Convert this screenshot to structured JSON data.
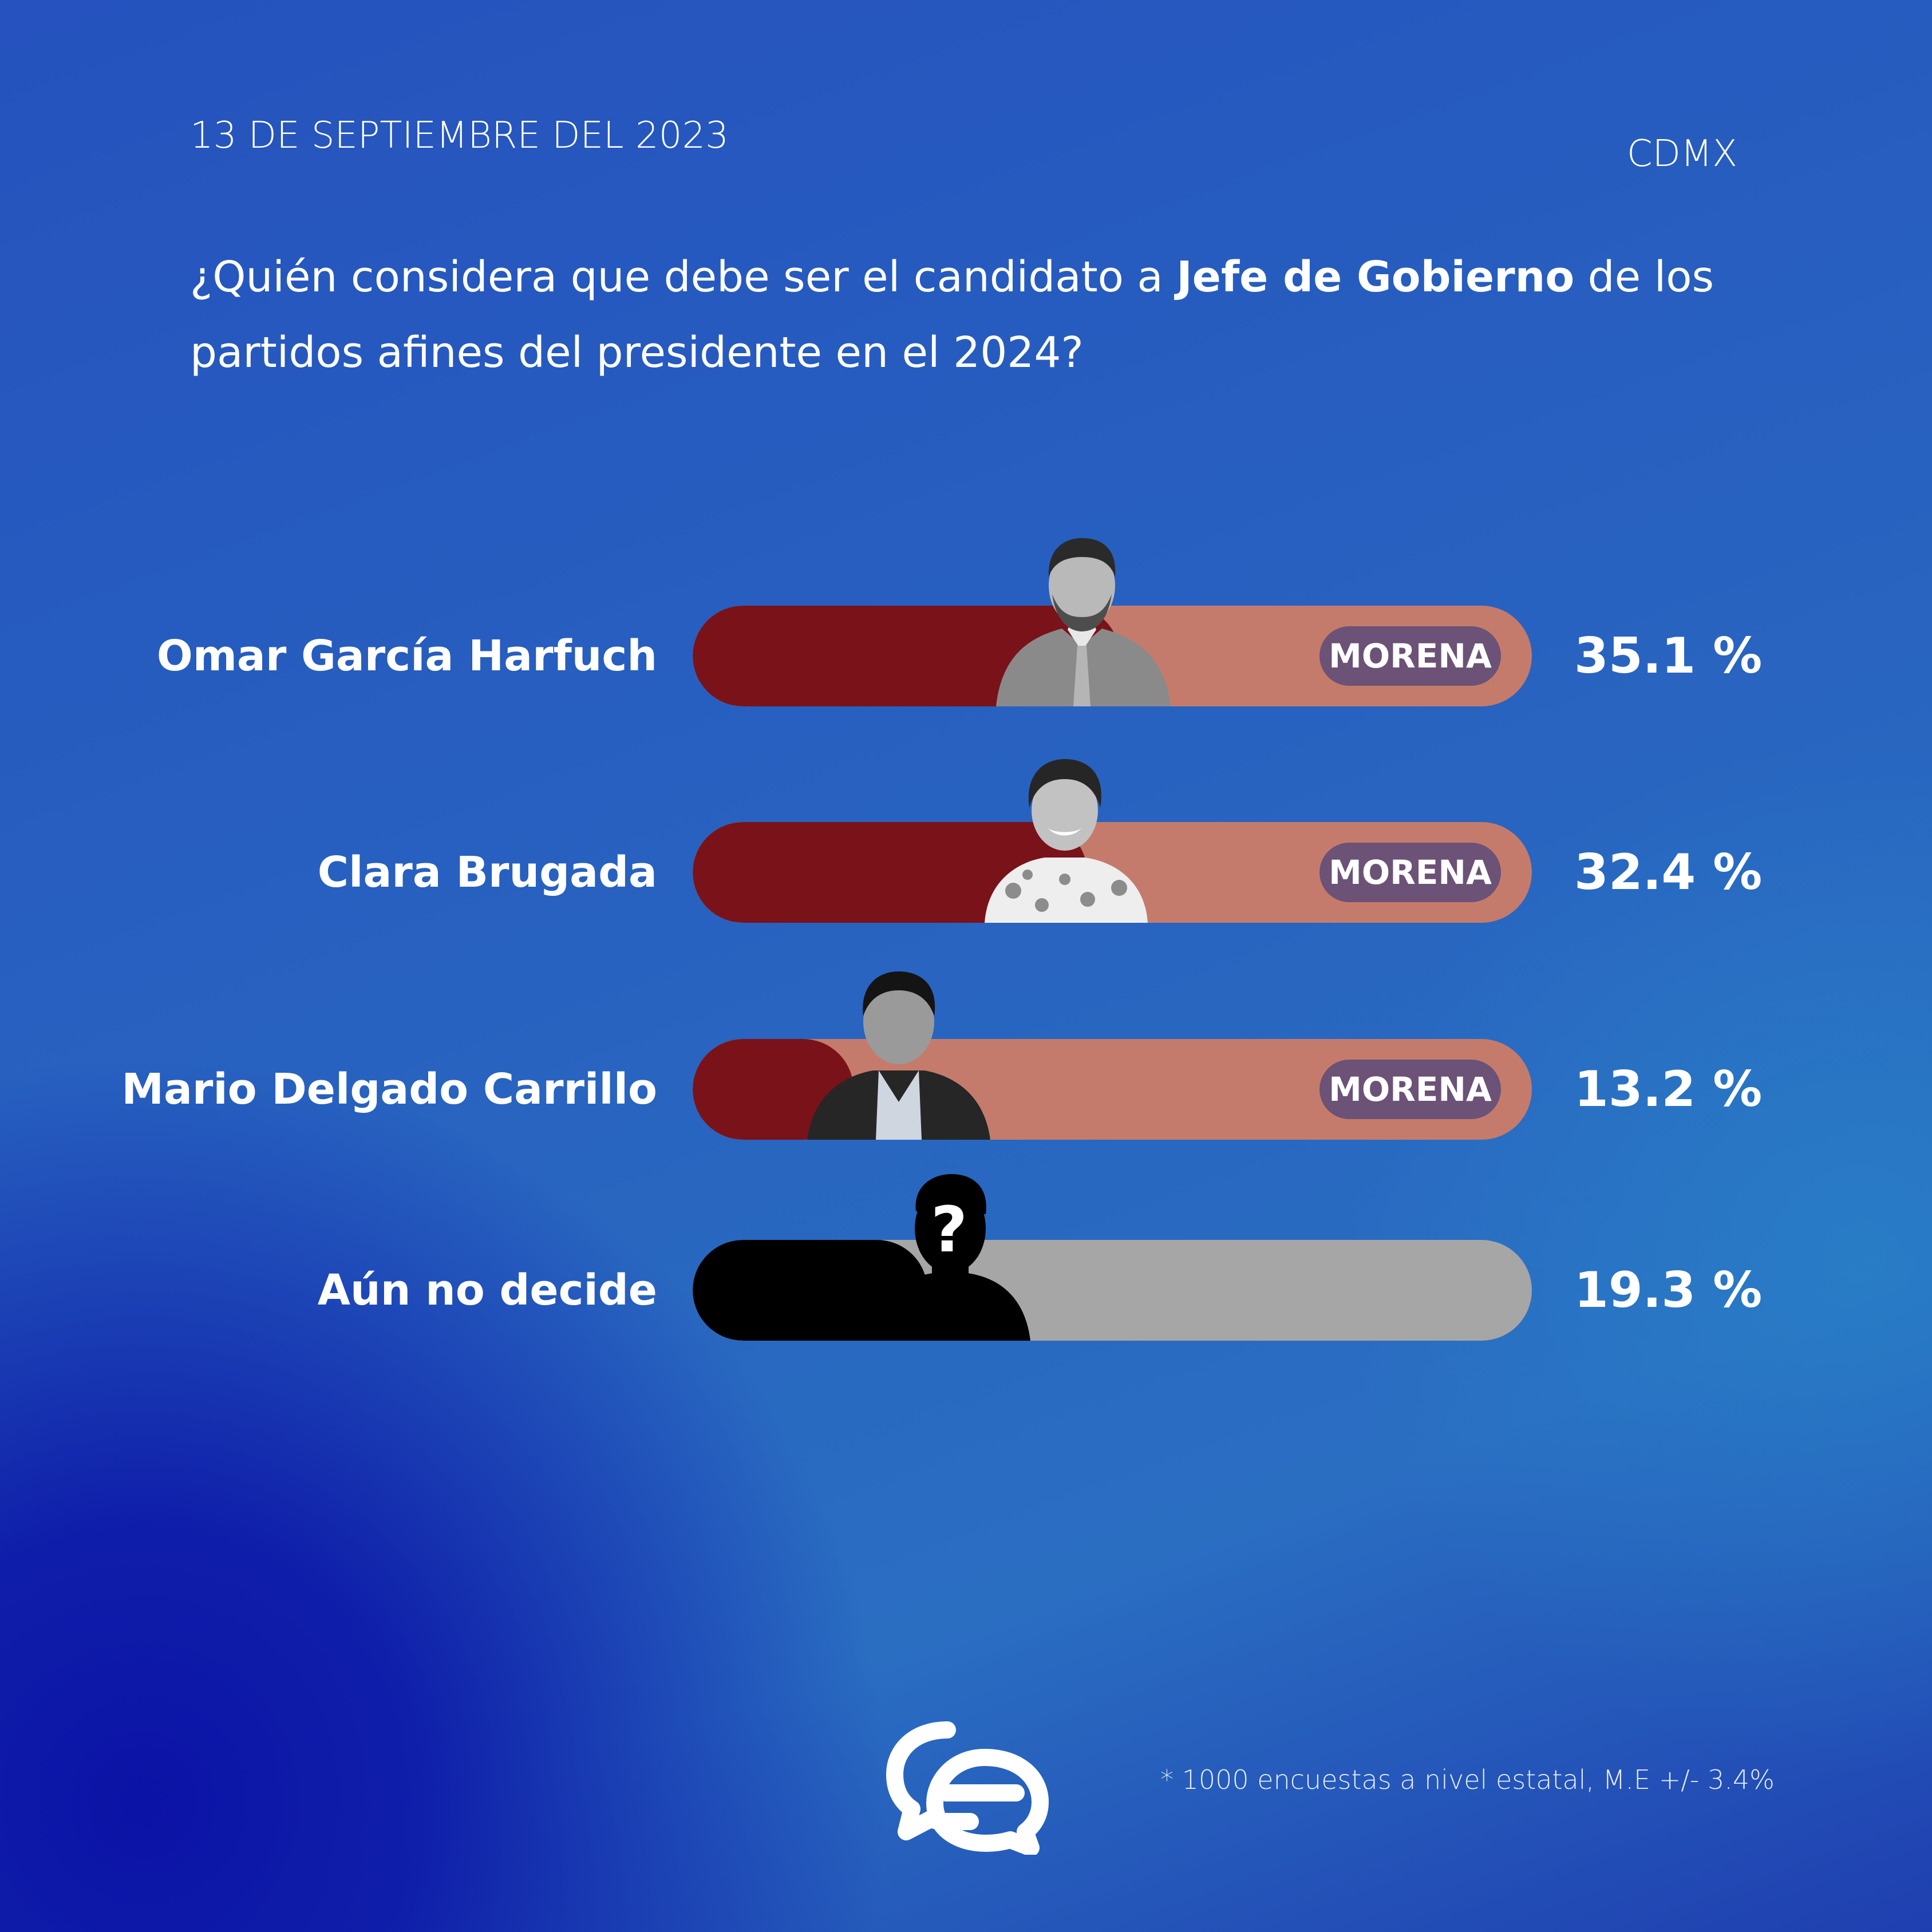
{
  "header": {
    "date": "13 DE SEPTIEMBRE DEL 2023",
    "region": "CDMX",
    "question_pre": "¿Quién considera que debe ser el candidato a ",
    "question_bold": "Jefe de Gobierno",
    "question_post": " de los partidos afines del presidente en el 2024?"
  },
  "chart_data": {
    "type": "bar",
    "orientation": "horizontal",
    "categories": [
      "Omar García Harfuch",
      "Clara Brugada",
      "Mario Delgado Carrillo",
      "Aún no decide"
    ],
    "values": [
      35.1,
      32.4,
      13.2,
      19.3
    ],
    "value_labels": [
      "35.1 %",
      "32.4 %",
      "13.2 %",
      "19.3 %"
    ],
    "party_labels": [
      "MORENA",
      "MORENA",
      "MORENA",
      ""
    ],
    "unit": "%",
    "xlim": [
      0,
      100
    ],
    "colors": {
      "fill": "#7a1219",
      "track": "#c57b6c",
      "undecided_fill": "#000000",
      "undecided_track": "#a6a6a6",
      "badge": "#6b5276"
    }
  },
  "footer": {
    "footnote": "* 1000 encuestas a nivel estatal, M.E +/- 3.4%",
    "logo_icon": "chat-bubbles-logo-icon"
  }
}
